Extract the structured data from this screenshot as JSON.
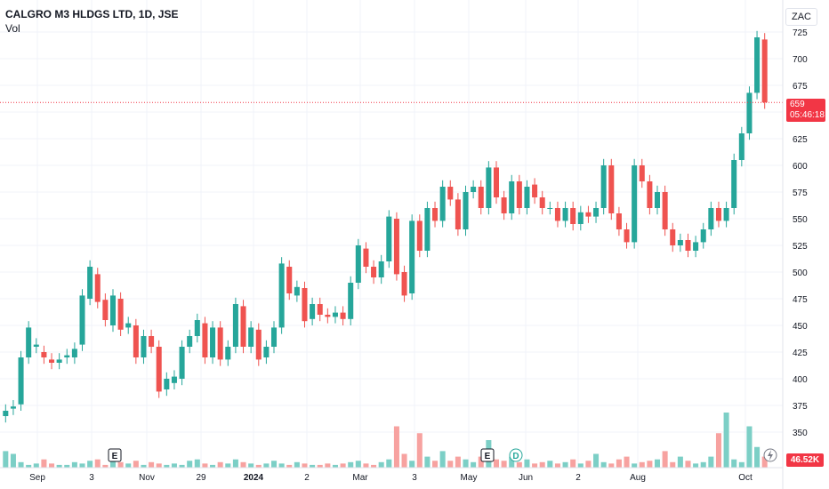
{
  "header": {
    "title": "CALGRO M3 HLDGS LTD, 1D, JSE",
    "volume_label": "Vol"
  },
  "currency": "ZAC",
  "last_price": {
    "value": "659",
    "countdown": "05:46:18"
  },
  "last_volume": "46.52K",
  "markers": {
    "earnings": "E",
    "dividend": "D"
  },
  "colors": {
    "up": "#26a69a",
    "down": "#ef5350",
    "up_volume": "#7ccfc6",
    "down_volume": "#f7a2a0",
    "price_line": "#f23645",
    "grid": "#f0f3fa",
    "axis_text": "#131722"
  },
  "chart_data": {
    "type": "candlestick",
    "y_axis": {
      "ticks": [
        "725",
        "700",
        "675",
        "650",
        "625",
        "600",
        "575",
        "550",
        "525",
        "500",
        "475",
        "450",
        "425",
        "400",
        "375",
        "350"
      ],
      "range": [
        340,
        740
      ]
    },
    "x_axis": {
      "ticks": [
        "Sep",
        "3",
        "Nov",
        "29",
        "2024",
        "2",
        "Mar",
        "3",
        "May",
        "Jun",
        "2",
        "Aug",
        "Oct"
      ]
    },
    "price_line": 659,
    "series": [
      {
        "name": "price",
        "points": [
          [
            365,
            370
          ],
          [
            372,
            374
          ],
          [
            376,
            420
          ],
          [
            420,
            448
          ],
          [
            430,
            432
          ],
          [
            425,
            420
          ],
          [
            418,
            415
          ],
          [
            415,
            418
          ],
          [
            420,
            422
          ],
          [
            420,
            428
          ],
          [
            432,
            478
          ],
          [
            475,
            505
          ],
          [
            498,
            472
          ],
          [
            474,
            455
          ],
          [
            450,
            478
          ],
          [
            475,
            446
          ],
          [
            448,
            452
          ],
          [
            450,
            420
          ],
          [
            420,
            440
          ],
          [
            440,
            430
          ],
          [
            430,
            388
          ],
          [
            390,
            400
          ],
          [
            396,
            402
          ],
          [
            400,
            430
          ],
          [
            430,
            440
          ],
          [
            440,
            455
          ],
          [
            452,
            420
          ],
          [
            420,
            448
          ],
          [
            448,
            418
          ],
          [
            418,
            430
          ],
          [
            430,
            470
          ],
          [
            468,
            430
          ],
          [
            430,
            448
          ],
          [
            446,
            418
          ],
          [
            420,
            430
          ],
          [
            430,
            448
          ],
          [
            448,
            508
          ],
          [
            505,
            480
          ],
          [
            478,
            486
          ],
          [
            485,
            454
          ],
          [
            456,
            470
          ],
          [
            470,
            460
          ],
          [
            460,
            458
          ],
          [
            458,
            462
          ],
          [
            462,
            456
          ],
          [
            456,
            490
          ],
          [
            490,
            525
          ],
          [
            522,
            505
          ],
          [
            505,
            495
          ],
          [
            495,
            510
          ],
          [
            510,
            552
          ],
          [
            550,
            498
          ],
          [
            500,
            478
          ],
          [
            480,
            548
          ],
          [
            548,
            520
          ],
          [
            520,
            560
          ],
          [
            560,
            548
          ],
          [
            548,
            580
          ],
          [
            580,
            568
          ],
          [
            568,
            540
          ],
          [
            540,
            575
          ],
          [
            575,
            580
          ],
          [
            580,
            560
          ],
          [
            560,
            598
          ],
          [
            598,
            570
          ],
          [
            570,
            555
          ],
          [
            555,
            585
          ],
          [
            585,
            560
          ],
          [
            560,
            580
          ],
          [
            582,
            570
          ],
          [
            570,
            560
          ],
          [
            560,
            560
          ],
          [
            560,
            548
          ],
          [
            548,
            560
          ],
          [
            560,
            545
          ],
          [
            545,
            556
          ],
          [
            556,
            552
          ],
          [
            552,
            560
          ],
          [
            560,
            600
          ],
          [
            600,
            555
          ],
          [
            555,
            540
          ],
          [
            540,
            528
          ],
          [
            528,
            600
          ],
          [
            600,
            585
          ],
          [
            585,
            560
          ],
          [
            560,
            575
          ],
          [
            575,
            540
          ],
          [
            540,
            525
          ],
          [
            525,
            530
          ],
          [
            530,
            520
          ],
          [
            520,
            528
          ],
          [
            528,
            540
          ],
          [
            540,
            560
          ],
          [
            560,
            548
          ],
          [
            548,
            560
          ],
          [
            560,
            605
          ],
          [
            605,
            630
          ],
          [
            630,
            668
          ],
          [
            668,
            720
          ],
          [
            718,
            659
          ]
        ]
      }
    ],
    "volume_series": [
      {
        "name": "volume",
        "values": [
          12,
          10,
          4,
          2,
          3,
          6,
          3,
          2,
          2,
          4,
          3,
          5,
          6,
          2,
          6,
          4,
          3,
          5,
          2,
          4,
          3,
          2,
          3,
          2,
          5,
          6,
          3,
          2,
          4,
          3,
          6,
          4,
          3,
          2,
          3,
          5,
          3,
          2,
          4,
          3,
          2,
          2,
          3,
          2,
          3,
          4,
          5,
          3,
          2,
          4,
          6,
          30,
          10,
          5,
          25,
          8,
          5,
          12,
          5,
          8,
          6,
          4,
          8,
          20,
          6,
          5,
          8,
          4,
          6,
          3,
          4,
          5,
          3,
          4,
          6,
          3,
          5,
          10,
          4,
          3,
          6,
          8,
          3,
          4,
          5,
          6,
          12,
          4,
          8,
          5,
          3,
          4,
          8,
          25,
          40,
          6,
          4,
          30,
          15,
          8
        ]
      }
    ]
  }
}
